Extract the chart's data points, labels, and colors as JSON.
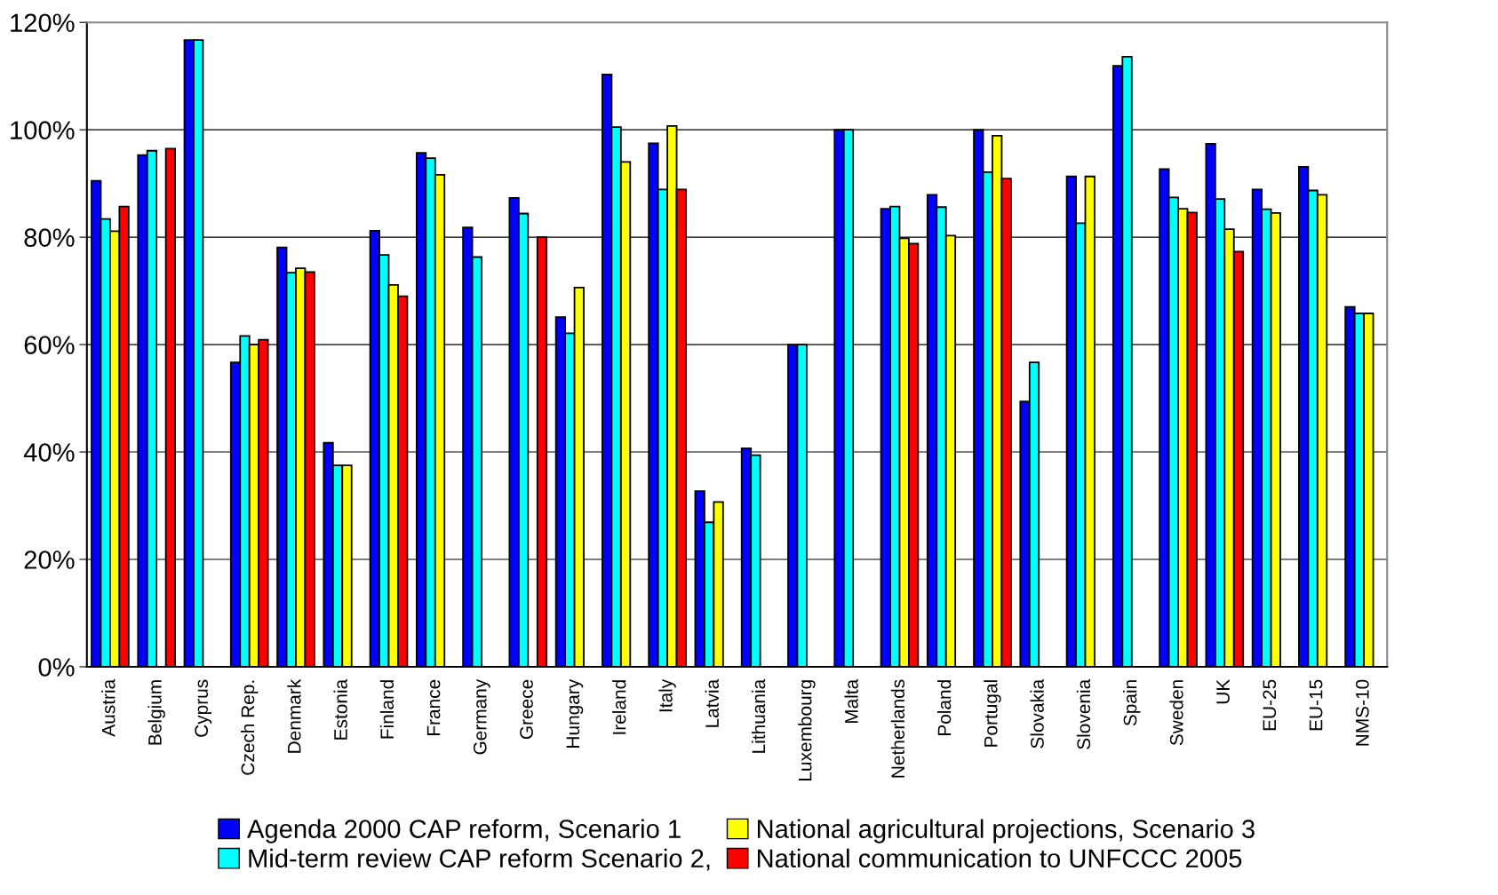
{
  "chart_data": {
    "type": "bar",
    "categories": [
      "Austria",
      "Belgium",
      "Cyprus",
      "Czech Rep.",
      "Denmark",
      "Estonia",
      "Finland",
      "France",
      "Germany",
      "Greece",
      "Hungary",
      "Ireland",
      "Italy",
      "Latvia",
      "Lithuania",
      "Luxembourg",
      "Malta",
      "Netherlands",
      "Poland",
      "Portugal",
      "Slovakia",
      "Slovenia",
      "Spain",
      "Sweden",
      "UK",
      "EU-25",
      "EU-15",
      "NMS-10"
    ],
    "series": [
      {
        "name": "Agenda 2000 CAP reform, Scenario 1",
        "color": "#0000ff",
        "values": [
          90.5,
          95.3,
          116.7,
          56.7,
          78.1,
          41.7,
          81.2,
          95.7,
          81.8,
          87.3,
          65.1,
          110.3,
          97.5,
          32.7,
          40.7,
          60.0,
          100.0,
          85.3,
          87.9,
          100.0,
          49.4,
          91.3,
          111.9,
          92.7,
          97.4,
          88.9,
          93.1,
          67.0
        ]
      },
      {
        "name": "Mid-term review CAP reform Scenario 2,",
        "color": "#00ffff",
        "values": [
          83.4,
          96.1,
          116.7,
          61.6,
          73.4,
          37.5,
          76.7,
          94.7,
          76.3,
          84.4,
          62.1,
          100.5,
          88.9,
          26.9,
          39.4,
          60.0,
          100.0,
          85.7,
          85.6,
          92.1,
          56.7,
          82.6,
          113.6,
          87.4,
          87.1,
          85.2,
          88.7,
          65.8
        ]
      },
      {
        "name": "National agricultural projections, Scenario 3",
        "color": "#ffff00",
        "values": [
          81.1,
          null,
          null,
          60.0,
          74.2,
          37.5,
          71.1,
          91.6,
          null,
          null,
          70.6,
          94.0,
          100.7,
          30.7,
          null,
          null,
          null,
          79.8,
          80.3,
          98.9,
          null,
          91.3,
          null,
          85.3,
          81.5,
          84.5,
          87.9,
          65.8
        ]
      },
      {
        "name": "National communication to UNFCCC 2005",
        "color": "#ff0000",
        "values": [
          85.7,
          96.5,
          null,
          60.9,
          73.5,
          null,
          69.0,
          null,
          null,
          80.0,
          null,
          null,
          88.9,
          null,
          null,
          null,
          null,
          78.8,
          null,
          90.9,
          null,
          null,
          null,
          84.6,
          77.3,
          null,
          null,
          null
        ]
      }
    ],
    "ylim": [
      0,
      120
    ],
    "yticks": [
      {
        "value": 0,
        "label": "0%"
      },
      {
        "value": 20,
        "label": "20%"
      },
      {
        "value": 40,
        "label": "40%"
      },
      {
        "value": 60,
        "label": "60%"
      },
      {
        "value": 80,
        "label": "80%"
      },
      {
        "value": 100,
        "label": "100%"
      },
      {
        "value": 120,
        "label": "120%"
      }
    ],
    "grid": "y",
    "legend": "bottom"
  }
}
